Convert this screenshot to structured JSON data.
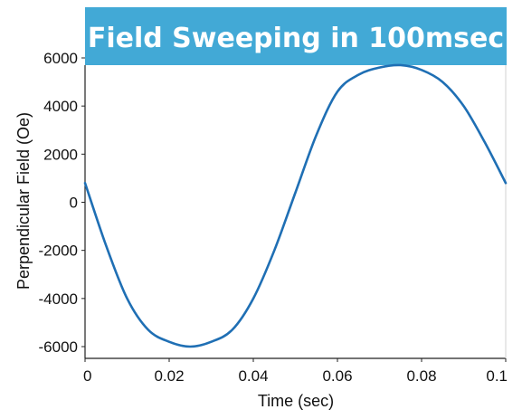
{
  "colors": {
    "title_background": "#42a9d6",
    "title_text": "#ffffff",
    "series_line": "#1f6fb4",
    "axis": "#222222",
    "grid": "#e8e8e8"
  },
  "chart_data": {
    "type": "line",
    "title": "Field Sweeping in 100msec",
    "xlabel": "Time (sec)",
    "ylabel": "Perpendicular Field (Oe)",
    "xlim": [
      0,
      0.1
    ],
    "ylim": [
      -6500,
      6000
    ],
    "x_ticks": [
      0,
      0.02,
      0.04,
      0.06,
      0.08,
      0.1
    ],
    "x_tick_labels": [
      "0",
      "0.02",
      "0.04",
      "0.06",
      "0.08",
      "0.1"
    ],
    "y_ticks": [
      6000,
      4000,
      2000,
      0,
      -2000,
      -4000,
      -6000
    ],
    "y_tick_labels": [
      "6000",
      "4000",
      "2000",
      "0",
      "-2000",
      "-4000",
      "-6000"
    ],
    "grid": false,
    "legend": "none",
    "series": [
      {
        "x": [
          0,
          0.005,
          0.01,
          0.015,
          0.02,
          0.025,
          0.03,
          0.035,
          0.04,
          0.045,
          0.05,
          0.055,
          0.06,
          0.065,
          0.07,
          0.075,
          0.08,
          0.085,
          0.09,
          0.095,
          0.1
        ],
        "values": [
          800,
          -1800,
          -4000,
          -5300,
          -5800,
          -6000,
          -5800,
          -5300,
          -4000,
          -2000,
          400,
          2800,
          4600,
          5300,
          5600,
          5700,
          5500,
          5000,
          4000,
          2500,
          800
        ]
      }
    ]
  }
}
